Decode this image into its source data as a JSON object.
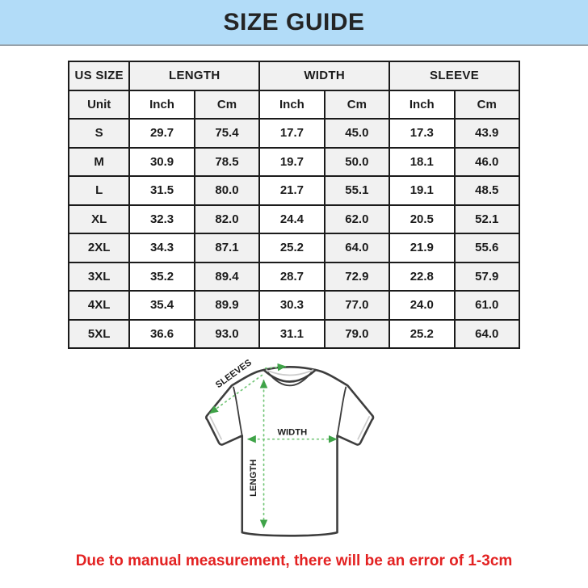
{
  "title": "SIZE GUIDE",
  "colors": {
    "banner_bg": "#b2dcf8",
    "banner_border": "#97a1a9",
    "title_text": "#242424",
    "table_border": "#1b1b1b",
    "cell_shaded": "#f1f1f1",
    "cell_plain": "#ffffff",
    "dash_green": "#74c678",
    "arrow_green": "#3fa348",
    "shirt_outline": "#3d3d3d",
    "note_red": "#e32222"
  },
  "table": {
    "group_headers": [
      {
        "label": "US SIZE",
        "span": 1
      },
      {
        "label": "LENGTH",
        "span": 2
      },
      {
        "label": "WIDTH",
        "span": 2
      },
      {
        "label": "SLEEVE",
        "span": 2
      }
    ],
    "unit_row": [
      "Unit",
      "Inch",
      "Cm",
      "Inch",
      "Cm",
      "Inch",
      "Cm"
    ],
    "rows": [
      {
        "size": "S",
        "values": [
          "29.7",
          "75.4",
          "17.7",
          "45.0",
          "17.3",
          "43.9"
        ]
      },
      {
        "size": "M",
        "values": [
          "30.9",
          "78.5",
          "19.7",
          "50.0",
          "18.1",
          "46.0"
        ]
      },
      {
        "size": "L",
        "values": [
          "31.5",
          "80.0",
          "21.7",
          "55.1",
          "19.1",
          "48.5"
        ]
      },
      {
        "size": "XL",
        "values": [
          "32.3",
          "82.0",
          "24.4",
          "62.0",
          "20.5",
          "52.1"
        ]
      },
      {
        "size": "2XL",
        "values": [
          "34.3",
          "87.1",
          "25.2",
          "64.0",
          "21.9",
          "55.6"
        ]
      },
      {
        "size": "3XL",
        "values": [
          "35.2",
          "89.4",
          "28.7",
          "72.9",
          "22.8",
          "57.9"
        ]
      },
      {
        "size": "4XL",
        "values": [
          "35.4",
          "89.9",
          "30.3",
          "77.0",
          "24.0",
          "61.0"
        ]
      },
      {
        "size": "5XL",
        "values": [
          "36.6",
          "93.0",
          "31.1",
          "79.0",
          "25.2",
          "64.0"
        ]
      }
    ]
  },
  "diagram": {
    "labels": {
      "sleeve": "SLEEVES",
      "width": "WIDTH",
      "length": "LENGTH"
    }
  },
  "note": "Due to manual measurement, there will be an error of 1-3cm"
}
